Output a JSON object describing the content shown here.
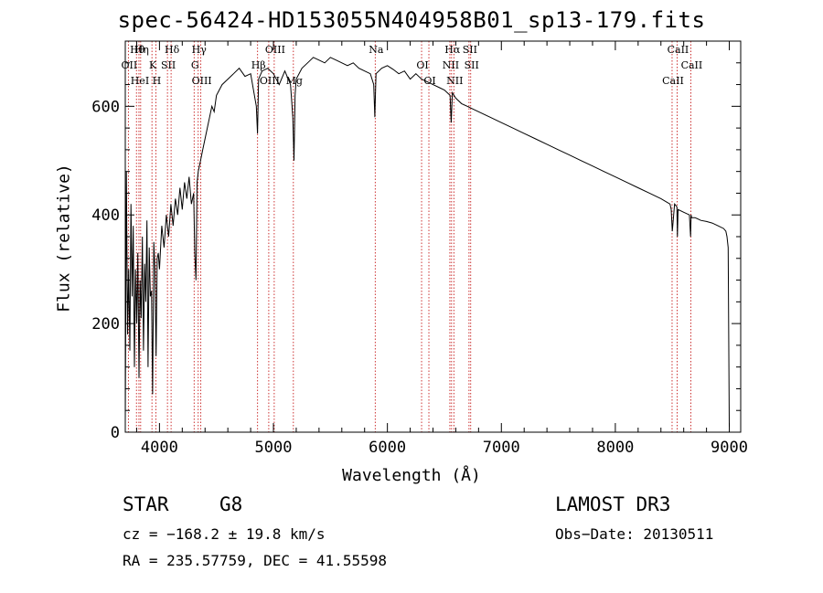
{
  "chart_data": {
    "type": "line",
    "title": "spec-56424-HD153055N404958B01_sp13-179.fits",
    "xlabel": "Wavelength (Å)",
    "ylabel": "Flux (relative)",
    "xlim": [
      3700,
      9100
    ],
    "ylim": [
      0,
      720
    ],
    "xticks": [
      4000,
      5000,
      6000,
      7000,
      8000,
      9000
    ],
    "yticks": [
      0,
      200,
      400,
      600
    ],
    "series": [
      {
        "name": "spectrum",
        "x": [
          3700,
          3710,
          3720,
          3730,
          3740,
          3750,
          3760,
          3770,
          3780,
          3790,
          3800,
          3810,
          3820,
          3830,
          3840,
          3850,
          3860,
          3870,
          3880,
          3890,
          3900,
          3910,
          3920,
          3930,
          3940,
          3950,
          3960,
          3970,
          3980,
          3990,
          4000,
          4020,
          4040,
          4060,
          4080,
          4100,
          4120,
          4140,
          4160,
          4180,
          4200,
          4220,
          4240,
          4260,
          4280,
          4300,
          4310,
          4320,
          4330,
          4340,
          4360,
          4380,
          4400,
          4420,
          4440,
          4460,
          4480,
          4500,
          4550,
          4600,
          4650,
          4700,
          4750,
          4800,
          4850,
          4860,
          4870,
          4900,
          4950,
          5000,
          5050,
          5100,
          5150,
          5170,
          5180,
          5190,
          5200,
          5250,
          5300,
          5350,
          5400,
          5450,
          5500,
          5550,
          5600,
          5650,
          5700,
          5750,
          5800,
          5850,
          5880,
          5890,
          5900,
          5950,
          6000,
          6050,
          6100,
          6150,
          6200,
          6250,
          6300,
          6350,
          6400,
          6450,
          6500,
          6550,
          6560,
          6565,
          6570,
          6600,
          6650,
          6700,
          6750,
          6800,
          6900,
          7000,
          7100,
          7200,
          7300,
          7400,
          7500,
          7600,
          7700,
          7800,
          7900,
          8000,
          8100,
          8200,
          8300,
          8400,
          8480,
          8490,
          8500,
          8520,
          8540,
          8545,
          8550,
          8600,
          8650,
          8660,
          8665,
          8670,
          8700,
          8750,
          8800,
          8850,
          8900,
          8950,
          8970,
          8980,
          8990,
          9000
        ],
        "values": [
          20,
          480,
          180,
          300,
          150,
          420,
          250,
          380,
          120,
          300,
          200,
          330,
          100,
          280,
          210,
          360,
          150,
          310,
          240,
          390,
          120,
          340,
          250,
          260,
          70,
          350,
          300,
          140,
          320,
          330,
          300,
          380,
          340,
          400,
          360,
          420,
          380,
          430,
          400,
          450,
          410,
          460,
          430,
          470,
          420,
          440,
          330,
          280,
          460,
          480,
          500,
          520,
          540,
          560,
          580,
          600,
          590,
          620,
          640,
          650,
          660,
          670,
          655,
          660,
          600,
          550,
          650,
          665,
          670,
          660,
          640,
          665,
          640,
          580,
          500,
          620,
          650,
          670,
          680,
          690,
          685,
          680,
          690,
          685,
          680,
          675,
          680,
          670,
          665,
          660,
          640,
          580,
          660,
          670,
          675,
          668,
          660,
          665,
          650,
          660,
          650,
          645,
          640,
          635,
          630,
          620,
          570,
          600,
          625,
          615,
          605,
          600,
          595,
          590,
          580,
          570,
          560,
          550,
          540,
          530,
          520,
          510,
          500,
          490,
          480,
          470,
          460,
          450,
          440,
          430,
          420,
          410,
          370,
          420,
          415,
          360,
          410,
          405,
          400,
          360,
          400,
          395,
          395,
          390,
          388,
          385,
          380,
          375,
          370,
          360,
          340,
          10
        ]
      }
    ],
    "line_markers": [
      {
        "label": "Hθ",
        "x": 3798
      },
      {
        "label": "OII",
        "x": 3727
      },
      {
        "label": "HeI",
        "x": 3820
      },
      {
        "label": "Hη",
        "x": 3835
      },
      {
        "label": "K",
        "x": 3934
      },
      {
        "label": "H",
        "x": 3968
      },
      {
        "label": "Hδ",
        "x": 4102
      },
      {
        "label": "SII",
        "x": 4070
      },
      {
        "label": "OIII",
        "x": 4363
      },
      {
        "label": "Hγ",
        "x": 4340
      },
      {
        "label": "G",
        "x": 4304
      },
      {
        "label": "OIII",
        "x": 4959
      },
      {
        "label": "OIII",
        "x": 5007
      },
      {
        "label": "Hβ",
        "x": 4861
      },
      {
        "label": "Mg",
        "x": 5175
      },
      {
        "label": "Na",
        "x": 5893
      },
      {
        "label": "OI",
        "x": 6300
      },
      {
        "label": "OI",
        "x": 6364
      },
      {
        "label": "Hα",
        "x": 6563
      },
      {
        "label": "NII",
        "x": 6548
      },
      {
        "label": "NII",
        "x": 6583
      },
      {
        "label": "SII",
        "x": 6716
      },
      {
        "label": "SII",
        "x": 6731
      },
      {
        "label": "CaII",
        "x": 8498
      },
      {
        "label": "CaII",
        "x": 8542
      },
      {
        "label": "CaII",
        "x": 8662
      }
    ]
  },
  "info": {
    "class": "STAR",
    "subclass": "G8",
    "survey": "LAMOST DR3",
    "cz": "cz = −168.2 ± 19.8 km/s",
    "obs_date": "Obs−Date: 20130511",
    "coords": "RA = 235.57759, DEC =  41.55598"
  }
}
